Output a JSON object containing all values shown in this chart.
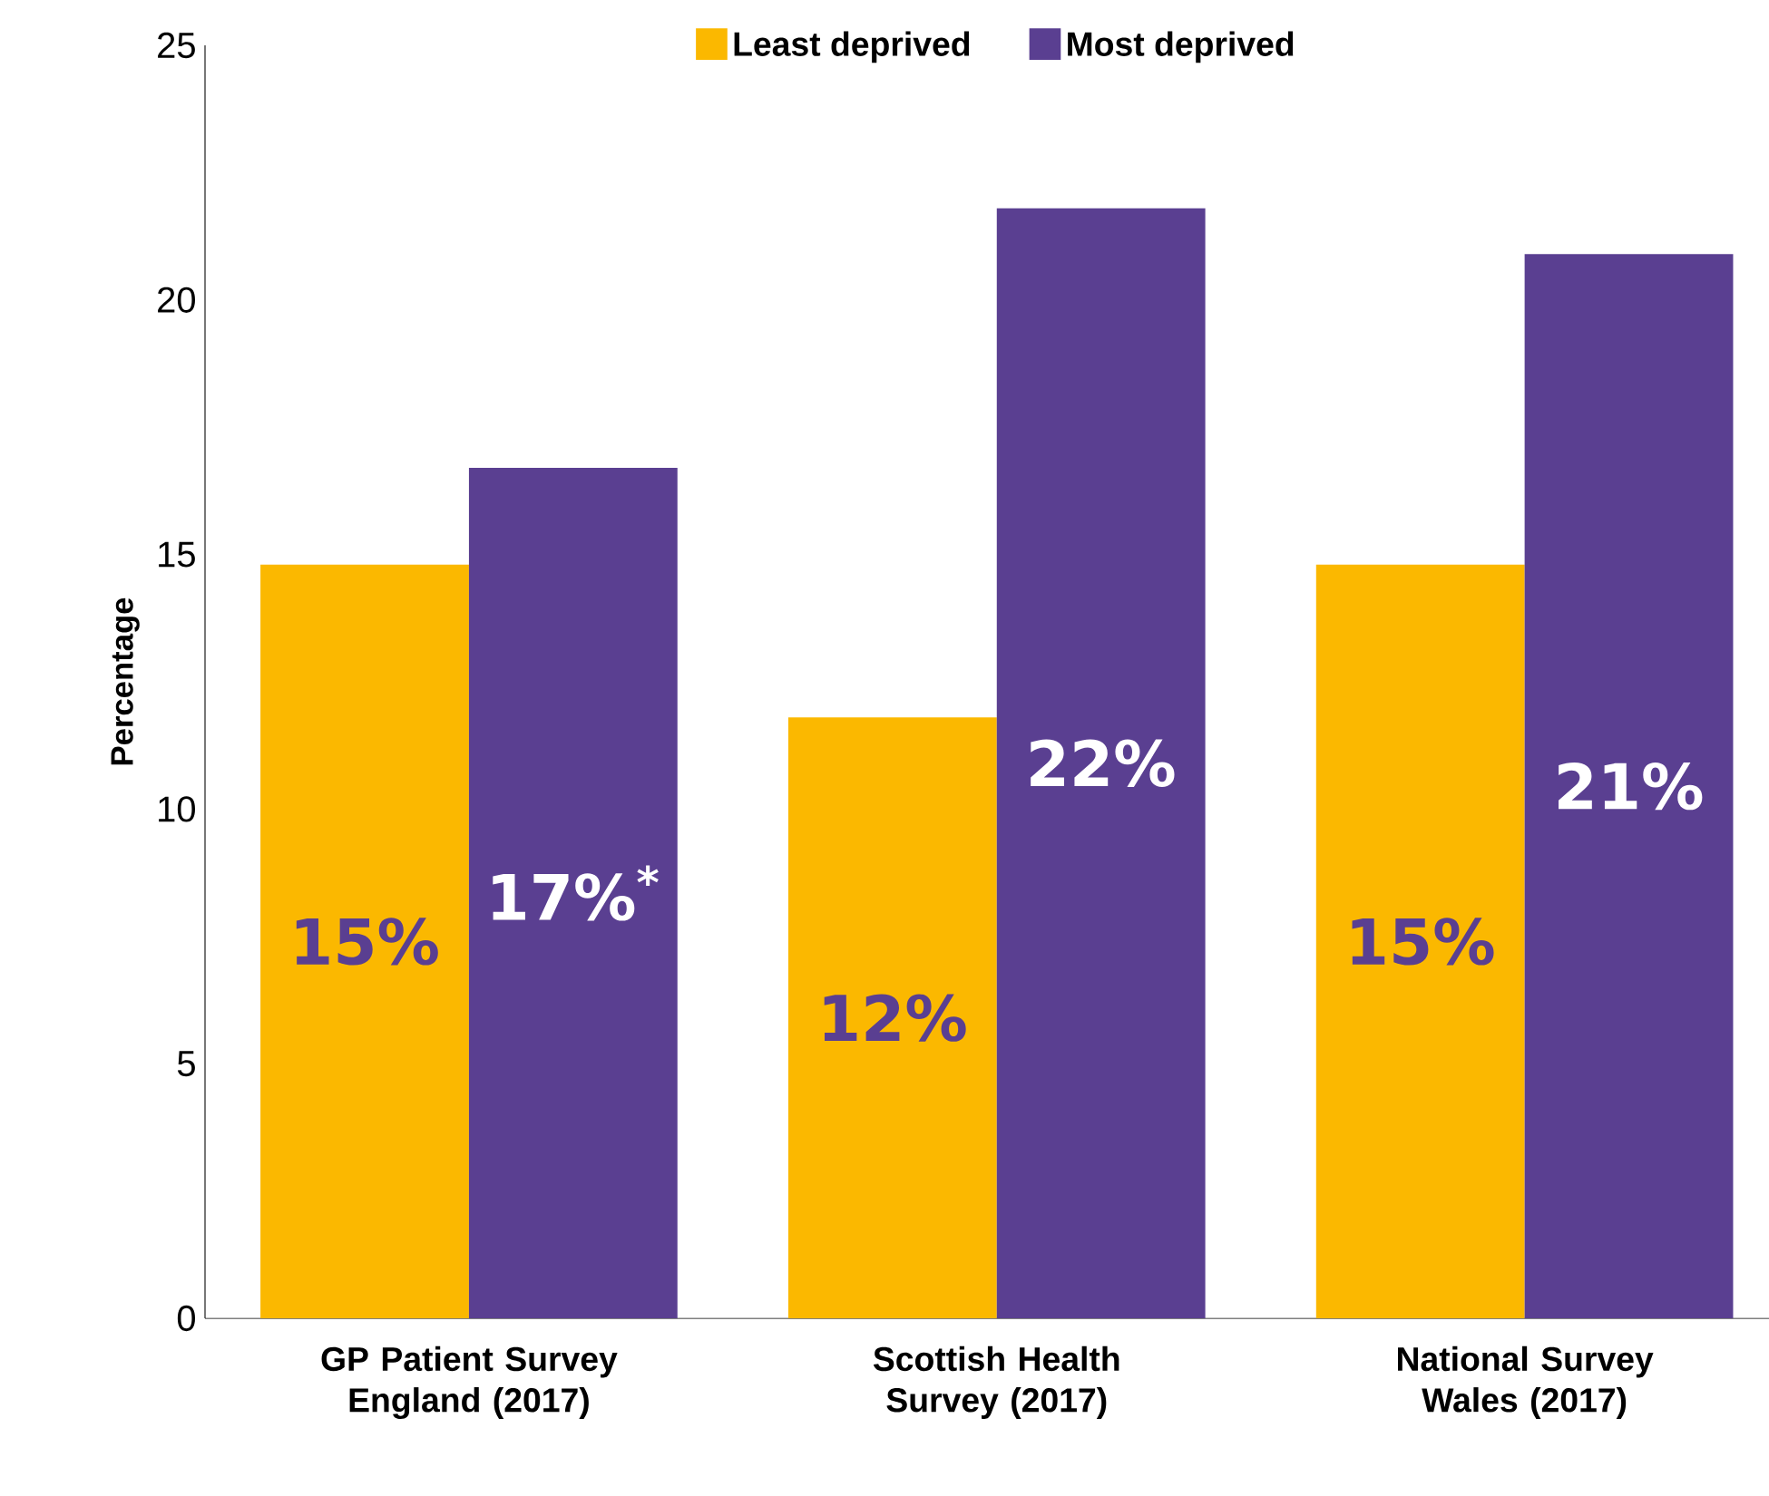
{
  "chart_data": {
    "type": "bar",
    "ylabel": "Percentage",
    "categories": [
      "GP Patient Survey England (2017)",
      "Scottish Health Survey (2017)",
      "National Survey Wales (2017)"
    ],
    "series": [
      {
        "name": "Least deprived",
        "color": "#fbb800",
        "values": [
          14.8,
          11.8,
          14.8
        ],
        "value_labels": [
          "15%",
          "12%",
          "15%"
        ]
      },
      {
        "name": "Most deprived",
        "color": "#5a3f91",
        "values": [
          16.7,
          21.8,
          20.9
        ],
        "value_labels": [
          "17%$^{*}$",
          "22%",
          "21%"
        ]
      }
    ],
    "ylim": [
      0,
      25
    ],
    "yticks": [
      0,
      5,
      10,
      15,
      20,
      25
    ],
    "grid": false,
    "legend": "top"
  }
}
